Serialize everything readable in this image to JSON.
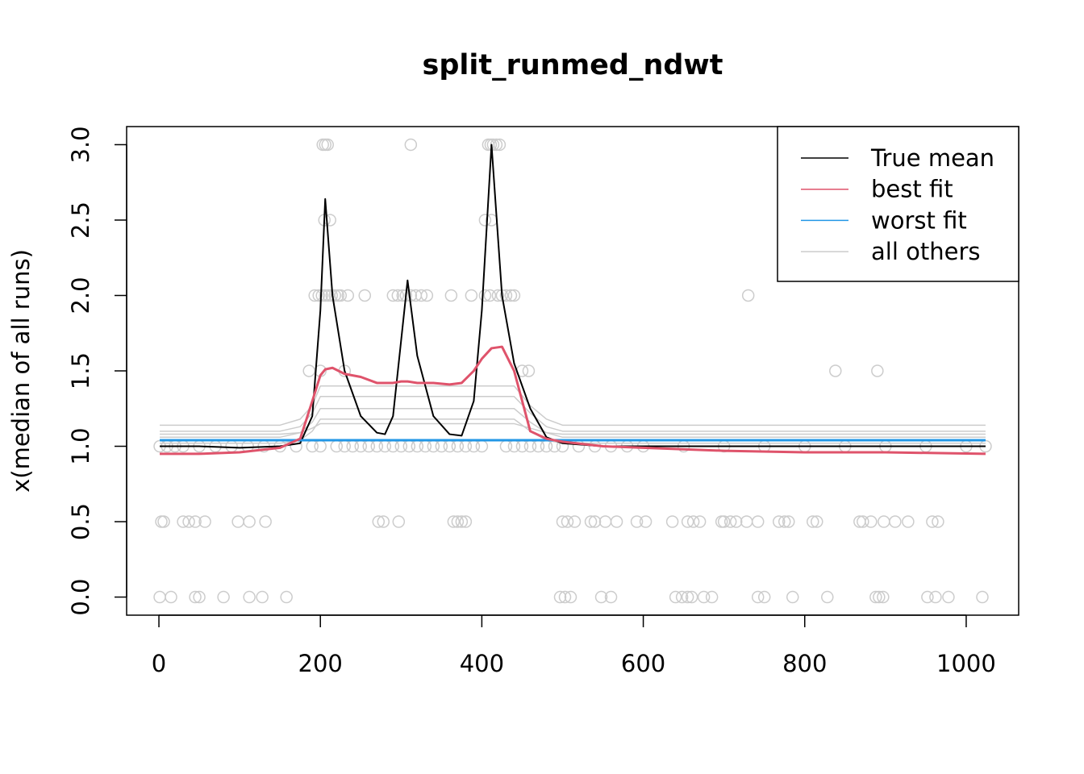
{
  "chart_data": {
    "type": "line",
    "title": "split_runmed_ndwt",
    "ylabel": "x(median of all runs)",
    "xlim": [
      -40,
      1065
    ],
    "ylim": [
      -0.12,
      3.12
    ],
    "xticks": [
      0,
      200,
      400,
      600,
      800,
      1000
    ],
    "yticks": [
      {
        "value": 0,
        "label": "0.0"
      },
      {
        "value": 0.5,
        "label": "0.5"
      },
      {
        "value": 1,
        "label": "1.0"
      },
      {
        "value": 1.5,
        "label": "1.5"
      },
      {
        "value": 2,
        "label": "2.0"
      },
      {
        "value": 2.5,
        "label": "2.5"
      },
      {
        "value": 3,
        "label": "3.0"
      }
    ],
    "legend": "top-right",
    "x": [
      1,
      50,
      100,
      150,
      175,
      190,
      200,
      206,
      215,
      230,
      250,
      270,
      280,
      290,
      300,
      308,
      320,
      340,
      360,
      375,
      390,
      400,
      412,
      425,
      440,
      460,
      480,
      500,
      550,
      600,
      700,
      800,
      900,
      1024
    ],
    "series": [
      {
        "name": "True mean",
        "color": "#000000",
        "values": [
          1.0,
          1.0,
          0.99,
          1.0,
          1.02,
          1.2,
          1.9,
          2.64,
          2.0,
          1.5,
          1.2,
          1.09,
          1.08,
          1.2,
          1.7,
          2.1,
          1.6,
          1.2,
          1.08,
          1.07,
          1.3,
          1.9,
          3.0,
          2.0,
          1.55,
          1.25,
          1.06,
          1.02,
          1.0,
          1.0,
          1.0,
          1.0,
          1.0,
          1.0
        ]
      },
      {
        "name": "best fit",
        "color": "#DF536B",
        "values": [
          0.95,
          0.95,
          0.96,
          0.99,
          1.05,
          1.3,
          1.47,
          1.51,
          1.52,
          1.48,
          1.46,
          1.42,
          1.42,
          1.42,
          1.43,
          1.43,
          1.42,
          1.42,
          1.41,
          1.42,
          1.5,
          1.58,
          1.65,
          1.66,
          1.5,
          1.1,
          1.05,
          1.03,
          1.0,
          0.99,
          0.97,
          0.96,
          0.96,
          0.95
        ]
      },
      {
        "name": "worst fit",
        "color": "#2297E6",
        "values": [
          1.04,
          1.04,
          1.04,
          1.04,
          1.04,
          1.04,
          1.04,
          1.04,
          1.04,
          1.04,
          1.04,
          1.04,
          1.04,
          1.04,
          1.04,
          1.04,
          1.04,
          1.04,
          1.04,
          1.04,
          1.04,
          1.04,
          1.04,
          1.04,
          1.04,
          1.04,
          1.04,
          1.04,
          1.04,
          1.04,
          1.04,
          1.04,
          1.04,
          1.04
        ]
      },
      {
        "name": "all others",
        "color": "#CCCCCC",
        "values": [
          [
            1.14,
            1.14,
            1.14,
            1.14,
            1.18,
            1.27,
            1.4,
            1.4,
            1.4,
            1.4,
            1.4,
            1.4,
            1.4,
            1.4,
            1.4,
            1.4,
            1.4,
            1.4,
            1.4,
            1.4,
            1.4,
            1.4,
            1.4,
            1.4,
            1.4,
            1.27,
            1.18,
            1.14,
            1.14,
            1.14,
            1.14,
            1.14,
            1.14,
            1.14
          ],
          [
            1.1,
            1.1,
            1.1,
            1.1,
            1.13,
            1.22,
            1.33,
            1.33,
            1.33,
            1.33,
            1.33,
            1.33,
            1.33,
            1.33,
            1.33,
            1.33,
            1.33,
            1.33,
            1.33,
            1.33,
            1.33,
            1.33,
            1.33,
            1.33,
            1.33,
            1.22,
            1.13,
            1.1,
            1.1,
            1.1,
            1.1,
            1.1,
            1.1,
            1.1
          ],
          [
            1.06,
            1.06,
            1.06,
            1.06,
            1.09,
            1.16,
            1.25,
            1.25,
            1.25,
            1.25,
            1.25,
            1.25,
            1.25,
            1.25,
            1.25,
            1.25,
            1.25,
            1.25,
            1.25,
            1.25,
            1.25,
            1.25,
            1.25,
            1.25,
            1.25,
            1.16,
            1.09,
            1.06,
            1.06,
            1.06,
            1.06,
            1.06,
            1.06,
            1.06
          ],
          [
            1.02,
            1.02,
            1.02,
            1.02,
            1.04,
            1.1,
            1.18,
            1.18,
            1.18,
            1.18,
            1.18,
            1.18,
            1.18,
            1.18,
            1.18,
            1.18,
            1.18,
            1.18,
            1.18,
            1.18,
            1.18,
            1.18,
            1.18,
            1.18,
            1.18,
            1.1,
            1.04,
            1.02,
            1.02,
            1.02,
            1.02,
            1.02,
            1.02,
            1.02
          ],
          [
            1.08,
            1.08,
            1.08,
            1.08,
            1.09,
            1.12,
            1.15,
            1.15,
            1.15,
            1.15,
            1.15,
            1.15,
            1.15,
            1.15,
            1.15,
            1.15,
            1.15,
            1.15,
            1.15,
            1.15,
            1.15,
            1.15,
            1.15,
            1.15,
            1.15,
            1.12,
            1.09,
            1.08,
            1.08,
            1.08,
            1.08,
            1.08,
            1.08,
            1.08
          ]
        ]
      }
    ],
    "points": {
      "color": "#CCCCCC",
      "groups": [
        {
          "y": 0,
          "x": [
            1,
            15,
            45,
            50,
            80,
            112,
            128,
            158,
            497,
            503,
            510,
            548,
            560,
            640,
            648,
            655,
            660,
            675,
            685,
            742,
            750,
            785,
            828,
            888,
            892,
            897,
            952,
            962,
            978,
            1020
          ]
        },
        {
          "y": 0.5,
          "x": [
            3,
            6,
            30,
            37,
            45,
            57,
            98,
            112,
            132,
            272,
            278,
            297,
            365,
            370,
            375,
            380,
            500,
            506,
            515,
            535,
            540,
            553,
            567,
            592,
            603,
            636,
            655,
            662,
            670,
            697,
            700,
            708,
            715,
            728,
            742,
            768,
            775,
            780,
            810,
            815,
            868,
            872,
            882,
            898,
            912,
            928,
            958,
            965
          ]
        },
        {
          "y": 1,
          "x": [
            1,
            10,
            20,
            30,
            50,
            70,
            90,
            110,
            130,
            150,
            170,
            190,
            200,
            220,
            230,
            240,
            250,
            260,
            270,
            280,
            290,
            300,
            310,
            320,
            330,
            340,
            350,
            360,
            370,
            380,
            390,
            400,
            430,
            440,
            450,
            460,
            470,
            480,
            490,
            500,
            520,
            540,
            560,
            580,
            600,
            650,
            700,
            750,
            800,
            850,
            900,
            950,
            1000,
            1024
          ]
        },
        {
          "y": 1.5,
          "x": [
            186,
            200,
            230,
            450,
            458,
            838,
            890
          ]
        },
        {
          "y": 2,
          "x": [
            193,
            198,
            202,
            206,
            210,
            214,
            218,
            222,
            225,
            234,
            255,
            290,
            296,
            302,
            306,
            312,
            318,
            325,
            332,
            362,
            387,
            404,
            410,
            420,
            425,
            430,
            436,
            440,
            730
          ]
        },
        {
          "y": 2.5,
          "x": [
            205,
            212,
            404,
            412
          ]
        },
        {
          "y": 3,
          "x": [
            203,
            206,
            209,
            312,
            408,
            411,
            414,
            418,
            422
          ]
        }
      ]
    }
  }
}
